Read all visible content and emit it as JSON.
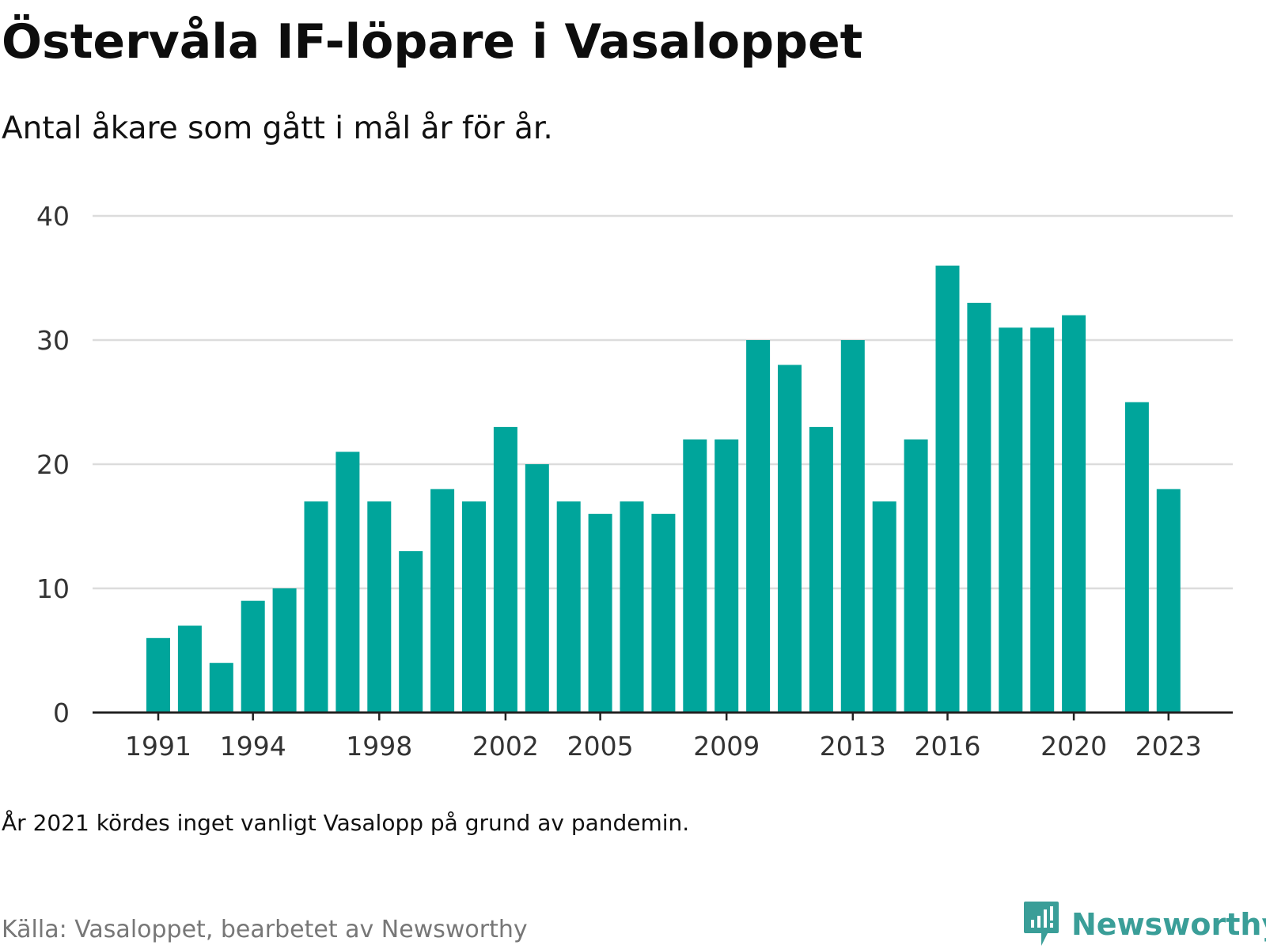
{
  "header": {
    "title": "Östervåla IF-löpare i Vasaloppet",
    "subtitle": "Antal åkare som gått i mål år för år."
  },
  "footer": {
    "note": "År 2021 kördes inget vanligt Vasalopp på grund av pandemin.",
    "source": "Källa: Vasaloppet, bearbetet av Newsworthy",
    "logo_text": "Newsworthy",
    "logo_icon": "newsworthy-chart-bubble-icon"
  },
  "colors": {
    "bar": "#00a59b",
    "grid": "#dcdcdc",
    "axis": "#222222",
    "tick_label": "#333333",
    "logo": "#3a9e98"
  },
  "chart_data": {
    "type": "bar",
    "title": "Östervåla IF-löpare i Vasaloppet",
    "subtitle": "Antal åkare som gått i mål år för år.",
    "xlabel": "",
    "ylabel": "",
    "ylim": [
      0,
      40
    ],
    "yticks": [
      0,
      10,
      20,
      30,
      40
    ],
    "xtick_labels": [
      "1991",
      "1994",
      "1998",
      "2002",
      "2005",
      "2009",
      "2013",
      "2016",
      "2020",
      "2023"
    ],
    "grid": true,
    "x": [
      1991,
      1992,
      1993,
      1994,
      1995,
      1996,
      1997,
      1998,
      1999,
      2000,
      2001,
      2002,
      2003,
      2004,
      2005,
      2006,
      2007,
      2008,
      2009,
      2010,
      2011,
      2012,
      2013,
      2014,
      2015,
      2016,
      2017,
      2018,
      2019,
      2020,
      2021,
      2022,
      2023
    ],
    "values": [
      6,
      7,
      4,
      9,
      10,
      17,
      21,
      17,
      13,
      18,
      17,
      23,
      20,
      17,
      16,
      17,
      16,
      22,
      22,
      30,
      28,
      23,
      30,
      17,
      22,
      36,
      33,
      31,
      31,
      32,
      null,
      25,
      18
    ]
  }
}
